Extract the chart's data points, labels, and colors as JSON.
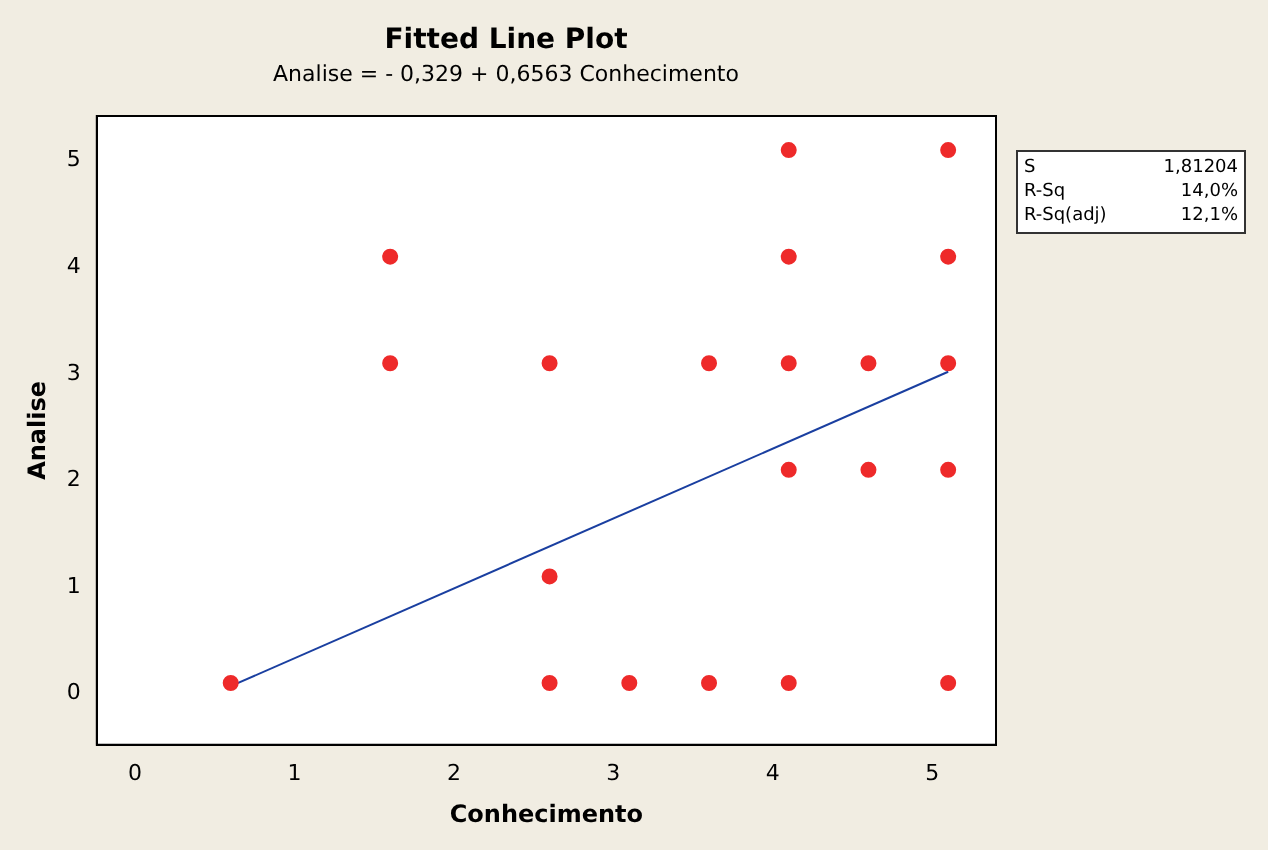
{
  "chart_data": {
    "type": "scatter",
    "title": "Fitted Line Plot",
    "subtitle": "Analise = - 0,329 + 0,6563 Conhecimento",
    "xlabel": "Conhecimento",
    "ylabel": "Analise",
    "xlim": [
      -0.24,
      5.4
    ],
    "xticks": [
      0,
      1,
      2,
      3,
      4,
      5
    ],
    "ylim": [
      -0.48,
      5.42
    ],
    "yticks": [
      0,
      1,
      2,
      3,
      4,
      5
    ],
    "grid": false,
    "legend": false,
    "marker": "circle",
    "annotations": [
      "S 1,81204",
      "R-Sq 14,0%",
      "R-Sq(adj) 12,1%"
    ],
    "series": [
      {
        "color": "#ee2a2a",
        "x": [
          0.6,
          1.6,
          1.6,
          2.6,
          2.6,
          2.6,
          3.1,
          3.6,
          3.6,
          4.1,
          4.1,
          4.1,
          4.1,
          4.1,
          4.6,
          4.6,
          5.1,
          5.1,
          5.1,
          5.1,
          5.1
        ],
        "values": [
          0.1,
          4.1,
          3.1,
          3.1,
          1.1,
          0.1,
          0.1,
          3.1,
          0.1,
          5.1,
          4.1,
          3.1,
          2.1,
          0.1,
          3.1,
          2.1,
          5.1,
          4.1,
          3.1,
          2.1,
          0.1
        ]
      },
      {
        "type": "line",
        "color": "#1a3fa0",
        "marker": "none",
        "line_style": "solid",
        "x": [
          0.6,
          5.1
        ],
        "values": [
          0.07,
          3.02
        ]
      }
    ]
  }
}
